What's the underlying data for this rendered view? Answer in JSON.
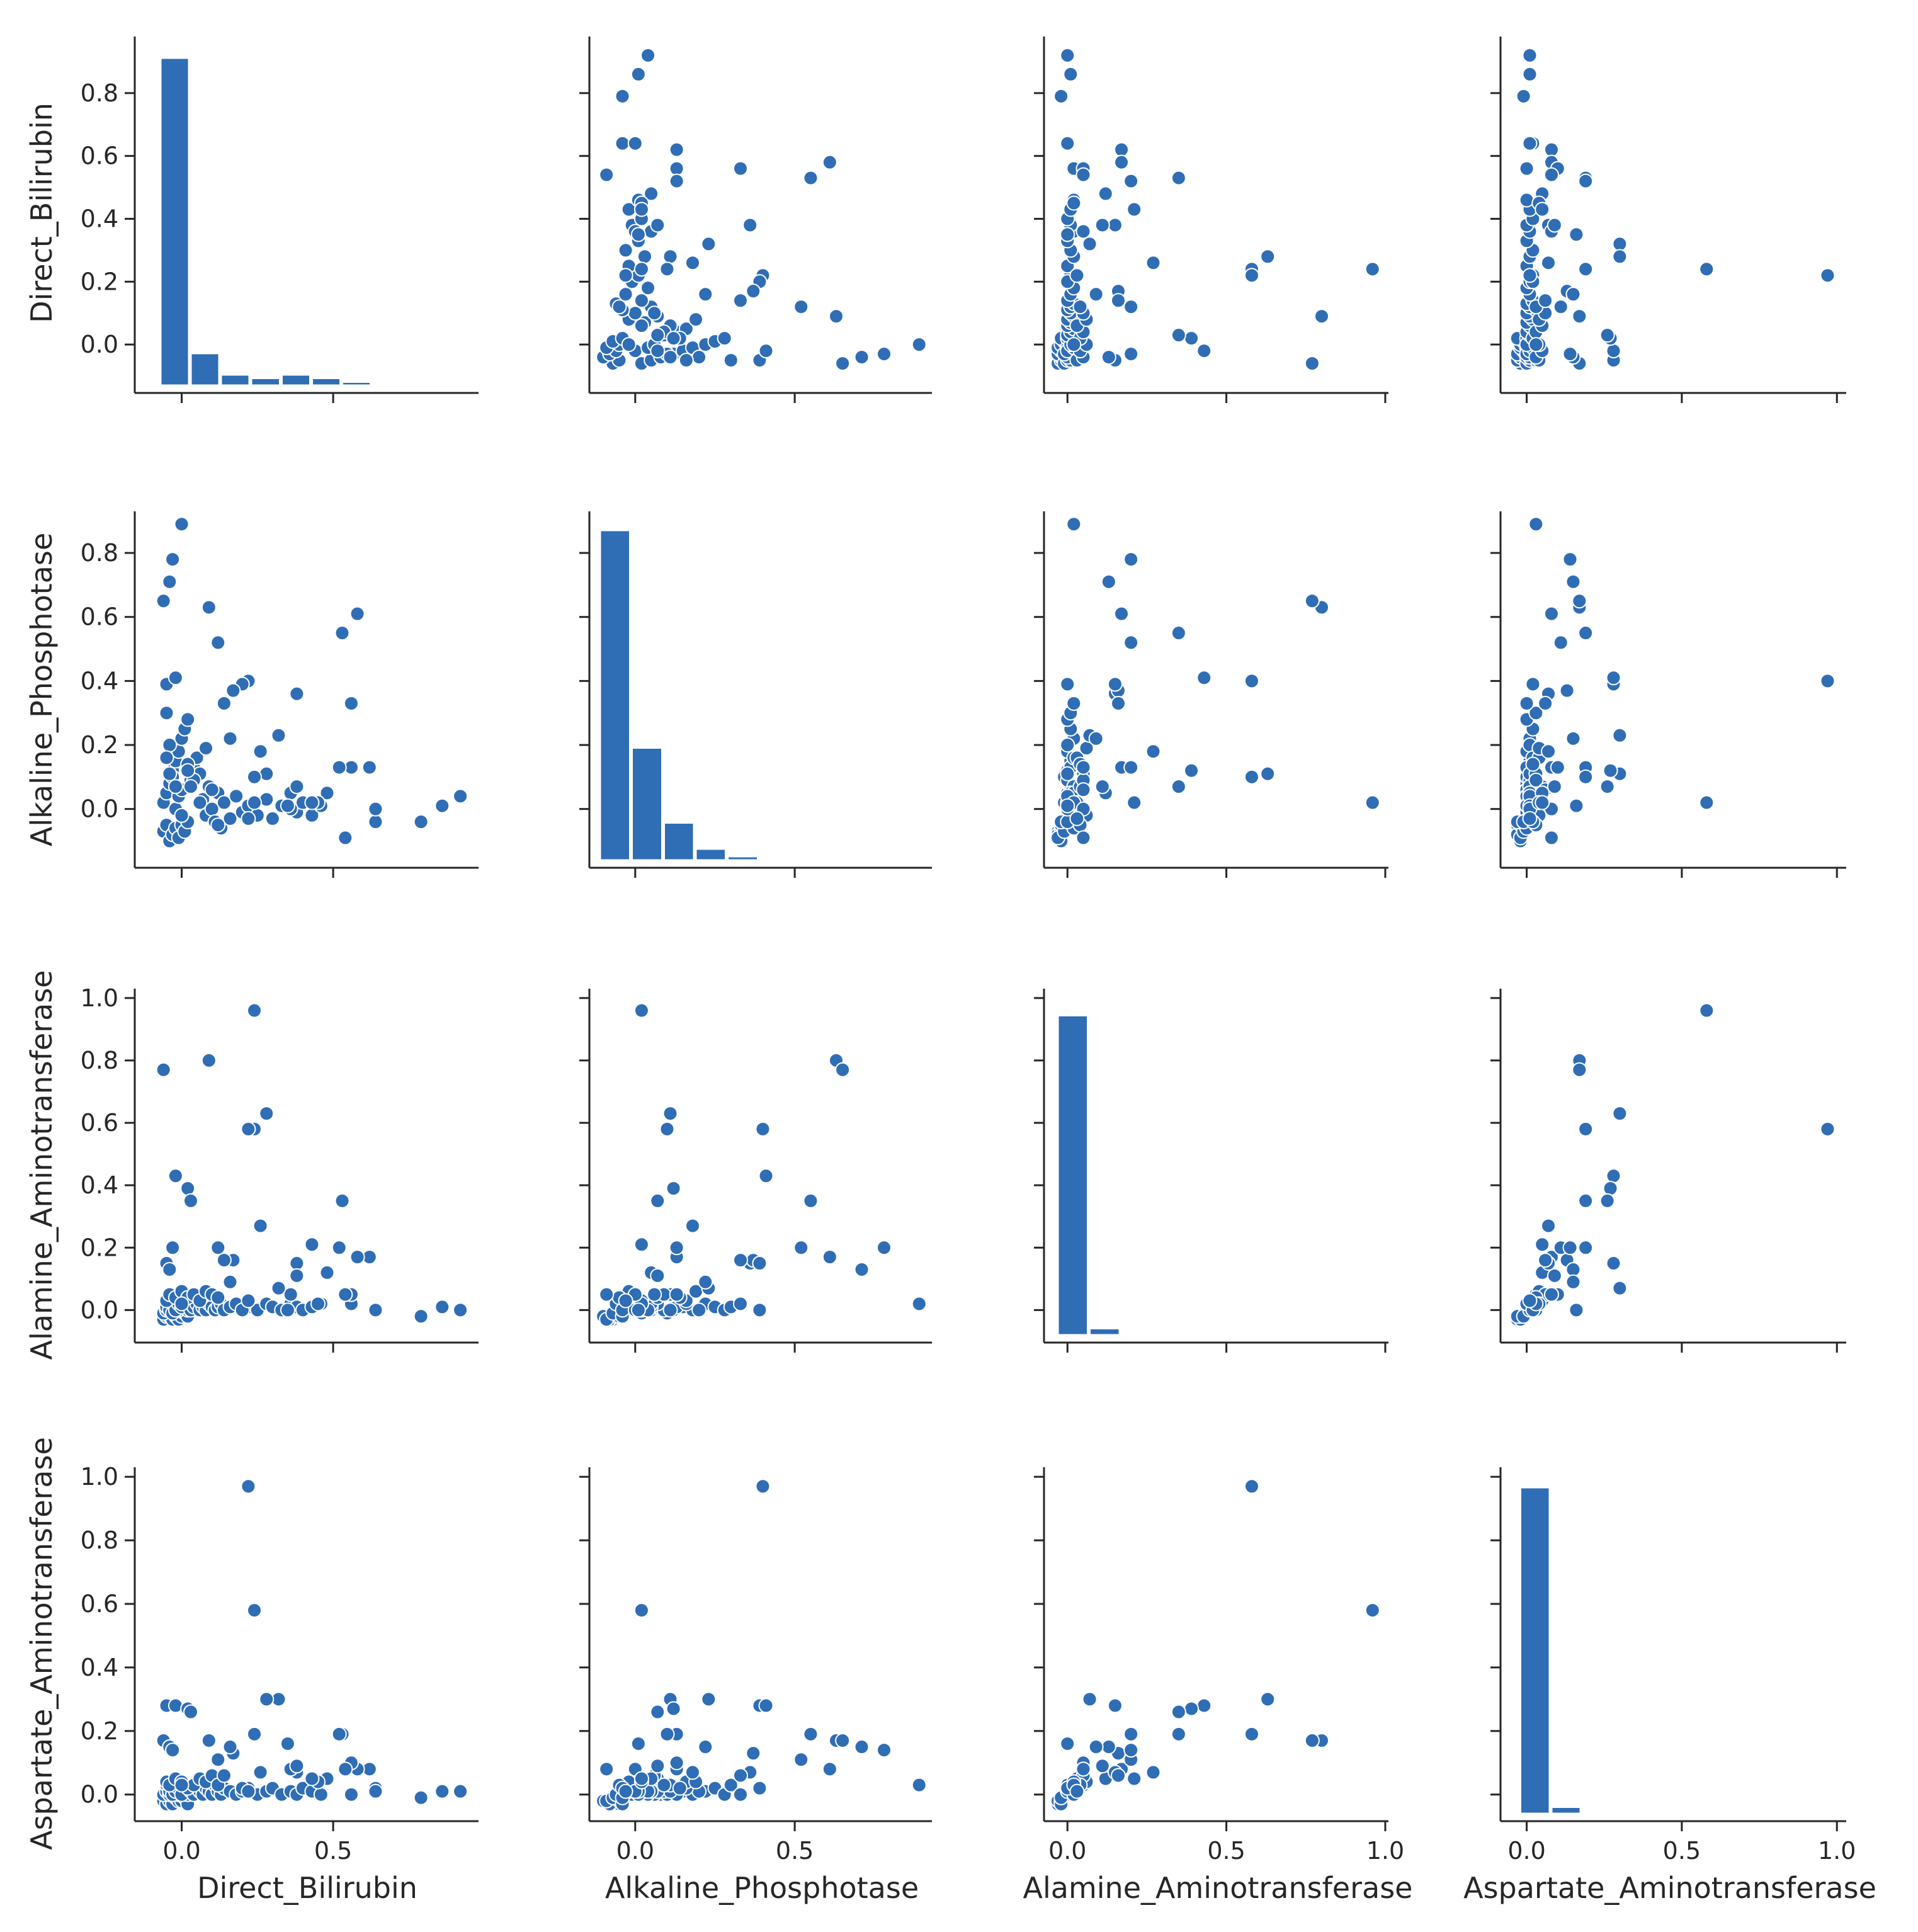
{
  "colors": {
    "marker": "#2f6db5",
    "edge": "#ffffff",
    "axis": "#262626"
  },
  "chart_data": {
    "type": "pairplot",
    "variables": [
      "Direct_Bilirubin",
      "Alkaline_Phosphotase",
      "Alamine_Aminotransferase",
      "Aspartate_Aminotransferase"
    ],
    "axes": [
      {
        "range": [
          -0.13,
          0.98
        ],
        "ticks": [
          0.0,
          0.5
        ],
        "tick_labels": [
          "0.0",
          "0.5"
        ]
      },
      {
        "range": [
          -0.12,
          0.93
        ],
        "ticks": [
          0.0,
          0.5
        ],
        "tick_labels": [
          "0.0",
          "0.5"
        ]
      },
      {
        "range": [
          -0.05,
          1.01
        ],
        "ticks": [
          0.0,
          0.5,
          1.0
        ],
        "tick_labels": [
          "0.0",
          "0.5",
          "1.0"
        ]
      },
      {
        "range": [
          -0.06,
          1.03
        ],
        "ticks": [
          0.0,
          0.5,
          1.0
        ],
        "tick_labels": [
          "0.0",
          "0.5",
          "1.0"
        ]
      }
    ],
    "y_axes": [
      {
        "range": [
          -0.13,
          0.98
        ],
        "ticks": [
          0.0,
          0.2,
          0.4,
          0.6,
          0.8
        ],
        "tick_labels": [
          "0.0",
          "0.2",
          "0.4",
          "0.6",
          "0.8"
        ]
      },
      {
        "range": [
          -0.16,
          0.93
        ],
        "ticks": [
          0.0,
          0.2,
          0.4,
          0.6,
          0.8
        ],
        "tick_labels": [
          "0.0",
          "0.2",
          "0.4",
          "0.6",
          "0.8"
        ]
      },
      {
        "range": [
          -0.08,
          1.03
        ],
        "ticks": [
          0.0,
          0.2,
          0.4,
          0.6,
          0.8,
          1.0
        ],
        "tick_labels": [
          "0.0",
          "0.2",
          "0.4",
          "0.6",
          "0.8",
          "1.0"
        ]
      },
      {
        "range": [
          -0.06,
          1.03
        ],
        "ticks": [
          0.0,
          0.2,
          0.4,
          0.6,
          0.8,
          1.0
        ],
        "tick_labels": [
          "0.0",
          "0.2",
          "0.4",
          "0.6",
          "0.8",
          "1.0"
        ]
      }
    ],
    "histograms": [
      {
        "variable": "Direct_Bilirubin",
        "bin_edges": [
          -0.07,
          0.03,
          0.13,
          0.23,
          0.33,
          0.43,
          0.53,
          0.63,
          0.73,
          0.83,
          0.93
        ],
        "counts_relative": [
          0.92,
          0.09,
          0.03,
          0.02,
          0.03,
          0.02,
          0.01,
          0.0,
          0.0,
          0.0
        ]
      },
      {
        "variable": "Alkaline_Phosphotase",
        "bin_edges": [
          -0.11,
          -0.01,
          0.09,
          0.19,
          0.29,
          0.39,
          0.49,
          0.59,
          0.69,
          0.79,
          0.89
        ],
        "counts_relative": [
          0.88,
          0.3,
          0.1,
          0.03,
          0.01,
          0.0,
          0.0,
          0.0,
          0.0,
          0.0
        ]
      },
      {
        "variable": "Alamine_Aminotransferase",
        "bin_edges": [
          -0.03,
          0.07,
          0.17,
          0.27,
          0.37,
          0.47,
          0.57,
          0.67,
          0.77,
          0.87,
          0.97
        ],
        "counts_relative": [
          0.95,
          0.02,
          0.0,
          0.0,
          0.0,
          0.0,
          0.0,
          0.0,
          0.0,
          0.0
        ]
      },
      {
        "variable": "Aspartate_Aminotransferase",
        "bin_edges": [
          -0.02,
          0.08,
          0.18,
          0.28,
          0.38,
          0.48,
          0.58,
          0.68,
          0.78,
          0.88,
          0.98
        ],
        "counts_relative": [
          0.97,
          0.02,
          0.0,
          0.0,
          0.0,
          0.0,
          0.0,
          0.0,
          0.0,
          0.0
        ]
      }
    ],
    "hist_scale": [
      0.98,
      0.93,
      1.03,
      1.03
    ],
    "points": [
      [
        -0.06,
        -0.07,
        -0.03,
        -0.02
      ],
      [
        -0.05,
        -0.05,
        -0.02,
        -0.03
      ],
      [
        -0.04,
        -0.1,
        -0.02,
        -0.02
      ],
      [
        -0.03,
        -0.08,
        -0.03,
        -0.03
      ],
      [
        -0.02,
        -0.06,
        -0.02,
        -0.01
      ],
      [
        -0.01,
        -0.09,
        -0.03,
        -0.02
      ],
      [
        0.0,
        -0.05,
        -0.02,
        -0.02
      ],
      [
        0.01,
        -0.07,
        -0.01,
        -0.01
      ],
      [
        0.02,
        -0.04,
        -0.02,
        -0.03
      ],
      [
        -0.06,
        0.02,
        -0.01,
        0.0
      ],
      [
        -0.05,
        0.05,
        0.0,
        0.01
      ],
      [
        -0.04,
        0.08,
        0.01,
        0.0
      ],
      [
        -0.03,
        0.12,
        0.0,
        0.02
      ],
      [
        -0.02,
        0.15,
        0.01,
        0.01
      ],
      [
        -0.01,
        0.18,
        0.0,
        0.0
      ],
      [
        0.0,
        0.22,
        0.02,
        0.01
      ],
      [
        0.01,
        0.25,
        0.01,
        0.02
      ],
      [
        0.02,
        0.28,
        0.0,
        0.0
      ],
      [
        -0.05,
        0.3,
        0.01,
        0.03
      ],
      [
        -0.04,
        0.2,
        0.0,
        0.01
      ],
      [
        -0.03,
        0.1,
        -0.01,
        0.0
      ],
      [
        -0.02,
        0.0,
        0.0,
        0.01
      ],
      [
        -0.01,
        0.04,
        0.02,
        0.02
      ],
      [
        0.0,
        0.06,
        0.01,
        0.0
      ],
      [
        0.03,
        0.09,
        0.0,
        0.01
      ],
      [
        0.04,
        0.13,
        0.01,
        0.0
      ],
      [
        0.05,
        0.16,
        0.02,
        0.02
      ],
      [
        0.06,
        0.11,
        0.0,
        0.01
      ],
      [
        0.07,
        0.03,
        0.01,
        0.0
      ],
      [
        0.08,
        -0.02,
        0.0,
        0.02
      ],
      [
        0.09,
        0.07,
        0.02,
        0.01
      ],
      [
        0.1,
        0.0,
        0.01,
        0.0
      ],
      [
        0.11,
        -0.04,
        0.0,
        0.03
      ],
      [
        0.12,
        0.05,
        0.01,
        0.01
      ],
      [
        0.13,
        -0.06,
        0.02,
        0.0
      ],
      [
        0.14,
        0.02,
        0.0,
        0.02
      ],
      [
        0.16,
        -0.03,
        0.01,
        0.01
      ],
      [
        0.18,
        0.04,
        0.02,
        0.0
      ],
      [
        0.2,
        -0.01,
        0.0,
        0.01
      ],
      [
        0.22,
        0.01,
        0.01,
        0.02
      ],
      [
        0.25,
        -0.02,
        0.0,
        0.0
      ],
      [
        0.28,
        0.03,
        0.02,
        0.01
      ],
      [
        0.3,
        -0.03,
        0.01,
        0.02
      ],
      [
        0.33,
        0.01,
        0.0,
        0.0
      ],
      [
        0.36,
        0.05,
        0.02,
        0.01
      ],
      [
        0.38,
        -0.01,
        0.01,
        0.0
      ],
      [
        0.4,
        0.02,
        0.0,
        0.02
      ],
      [
        0.43,
        -0.02,
        0.01,
        0.01
      ],
      [
        0.46,
        0.01,
        0.02,
        0.0
      ],
      [
        -0.05,
        0.16,
        0.03,
        0.04
      ],
      [
        -0.04,
        0.11,
        0.05,
        0.03
      ],
      [
        -0.02,
        0.07,
        0.04,
        0.05
      ],
      [
        0.0,
        -0.02,
        0.06,
        0.04
      ],
      [
        0.02,
        0.14,
        0.04,
        0.02
      ],
      [
        0.04,
        0.09,
        0.05,
        0.03
      ],
      [
        0.06,
        0.02,
        0.03,
        0.05
      ],
      [
        0.08,
        0.19,
        0.06,
        0.04
      ],
      [
        0.1,
        0.06,
        0.05,
        0.06
      ],
      [
        0.12,
        -0.05,
        0.04,
        0.03
      ],
      [
        0.92,
        0.04,
        -0.0,
        0.01
      ],
      [
        0.86,
        0.01,
        0.01,
        0.01
      ],
      [
        0.79,
        -0.04,
        -0.02,
        -0.01
      ],
      [
        0.64,
        -0.04,
        0.0,
        0.02
      ],
      [
        0.64,
        0.0,
        0.0,
        0.01
      ],
      [
        0.62,
        0.13,
        0.17,
        0.08
      ],
      [
        0.58,
        0.61,
        0.17,
        0.08
      ],
      [
        0.56,
        0.33,
        0.02,
        0.0
      ],
      [
        0.56,
        0.13,
        0.05,
        0.1
      ],
      [
        0.53,
        0.55,
        0.35,
        0.19
      ],
      [
        0.52,
        0.13,
        0.2,
        0.19
      ],
      [
        0.54,
        -0.09,
        0.05,
        0.08
      ],
      [
        0.48,
        0.05,
        0.12,
        0.05
      ],
      [
        0.45,
        0.02,
        0.02,
        0.04
      ],
      [
        0.38,
        0.36,
        0.15,
        0.07
      ],
      [
        0.36,
        0.0,
        0.05,
        0.08
      ],
      [
        0.32,
        0.23,
        0.07,
        0.3
      ],
      [
        0.28,
        0.11,
        0.63,
        0.3
      ],
      [
        0.24,
        0.02,
        0.96,
        0.58
      ],
      [
        0.24,
        0.1,
        0.58,
        0.19
      ],
      [
        0.22,
        0.4,
        0.58,
        0.97
      ],
      [
        0.2,
        0.39,
        0.0,
        0.02
      ],
      [
        0.17,
        0.37,
        0.16,
        0.13
      ],
      [
        0.12,
        0.52,
        0.2,
        0.11
      ],
      [
        0.14,
        0.33,
        0.16,
        0.06
      ],
      [
        0.09,
        0.63,
        0.8,
        0.17
      ],
      [
        -0.06,
        0.65,
        0.77,
        0.17
      ],
      [
        -0.05,
        0.39,
        0.15,
        0.28
      ],
      [
        0.0,
        0.89,
        0.02,
        0.03
      ],
      [
        -0.04,
        0.71,
        0.13,
        0.15
      ],
      [
        -0.03,
        0.78,
        0.2,
        0.14
      ],
      [
        -0.02,
        0.41,
        0.43,
        0.28
      ],
      [
        0.02,
        0.12,
        0.39,
        0.27
      ],
      [
        0.03,
        0.07,
        0.35,
        0.26
      ],
      [
        0.35,
        0.01,
        0.0,
        0.16
      ],
      [
        0.26,
        0.18,
        0.27,
        0.07
      ],
      [
        0.43,
        0.02,
        0.21,
        0.05
      ],
      [
        0.38,
        0.07,
        0.11,
        0.09
      ],
      [
        0.22,
        -0.03,
        0.03,
        0.01
      ],
      [
        0.16,
        0.22,
        0.09,
        0.15
      ]
    ]
  }
}
